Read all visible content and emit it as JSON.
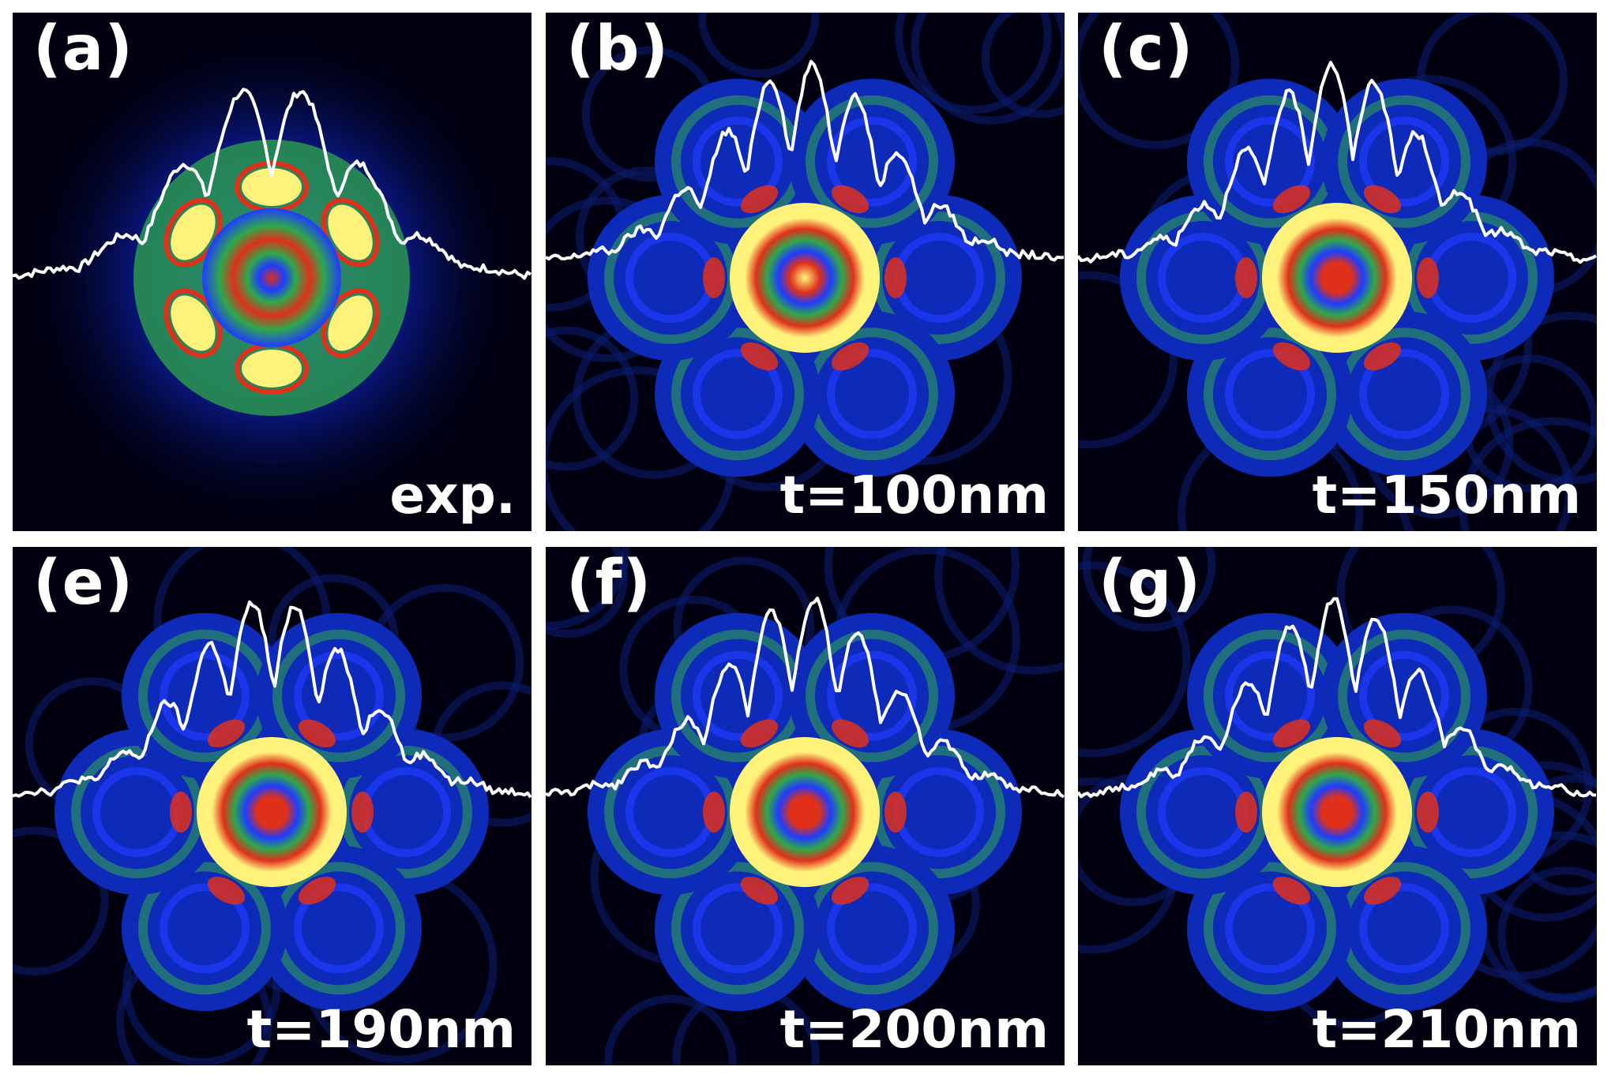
{
  "panels": [
    {
      "label": "(a)",
      "caption": "exp.",
      "kind": "experiment"
    },
    {
      "label": "(b)",
      "caption": "t=100nm",
      "kind": "simulation"
    },
    {
      "label": "(c)",
      "caption": "t=150nm",
      "kind": "simulation"
    },
    {
      "label": "(e)",
      "caption": "t=190nm",
      "kind": "simulation"
    },
    {
      "label": "(f)",
      "caption": "t=200nm",
      "kind": "simulation"
    },
    {
      "label": "(g)",
      "caption": "t=210nm",
      "kind": "simulation"
    }
  ],
  "colors": {
    "frame": "#ffffff",
    "background": "#000010",
    "deep_blue": "#0a1a8c",
    "blue": "#1f3cff",
    "green": "#2fa84a",
    "red": "#e0301a",
    "yellow": "#fff27a",
    "profile_line": "#ffffff"
  }
}
